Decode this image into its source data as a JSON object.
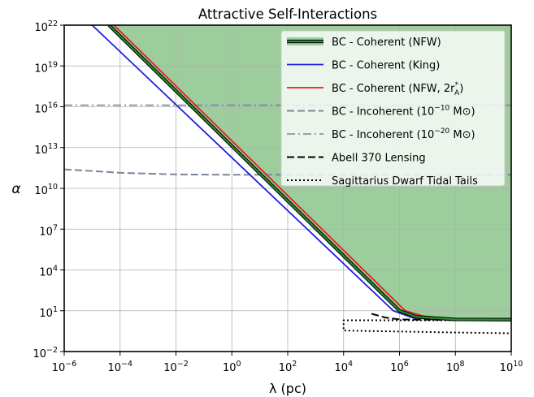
{
  "chart_data": {
    "type": "line",
    "title": "Attractive Self-Interactions",
    "xlabel": "λ (pc)",
    "ylabel": "α",
    "xscale": "log",
    "yscale": "log",
    "xlim": [
      1e-06,
      10000000000.0
    ],
    "ylim": [
      0.01,
      1e+22
    ],
    "grid": true,
    "legend_position": "top-right",
    "x_ticks": [
      {
        "value": 1e-06,
        "base": "10",
        "exp": "−6"
      },
      {
        "value": 0.0001,
        "base": "10",
        "exp": "−4"
      },
      {
        "value": 0.01,
        "base": "10",
        "exp": "−2"
      },
      {
        "value": 1.0,
        "base": "10",
        "exp": "0"
      },
      {
        "value": 100.0,
        "base": "10",
        "exp": "2"
      },
      {
        "value": 10000.0,
        "base": "10",
        "exp": "4"
      },
      {
        "value": 1000000.0,
        "base": "10",
        "exp": "6"
      },
      {
        "value": 100000000.0,
        "base": "10",
        "exp": "8"
      },
      {
        "value": 10000000000.0,
        "base": "10",
        "exp": "10"
      }
    ],
    "y_ticks": [
      {
        "value": 0.01,
        "base": "10",
        "exp": "−2"
      },
      {
        "value": 10.0,
        "base": "10",
        "exp": "1"
      },
      {
        "value": 10000.0,
        "base": "10",
        "exp": "4"
      },
      {
        "value": 10000000.0,
        "base": "10",
        "exp": "7"
      },
      {
        "value": 10000000000.0,
        "base": "10",
        "exp": "10"
      },
      {
        "value": 10000000000000.0,
        "base": "10",
        "exp": "13"
      },
      {
        "value": 1e+16,
        "base": "10",
        "exp": "16"
      },
      {
        "value": 1e+19,
        "base": "10",
        "exp": "19"
      },
      {
        "value": 1e+22,
        "base": "10",
        "exp": "22"
      }
    ],
    "excluded_region": {
      "color": "#9dcc9d",
      "bounded_by_series": "BC - Coherent (NFW)"
    },
    "series": [
      {
        "name": "BC - Coherent (NFW)",
        "color": "#2e8b2e",
        "style": "solid-thick",
        "points": [
          [
            4e-05,
            1e+22
          ],
          [
            1000000.0,
            10.0
          ],
          [
            4000000.0,
            3.5
          ],
          [
            100000000.0,
            2.3
          ],
          [
            10000000000.0,
            2.2
          ]
        ]
      },
      {
        "name": "BC - Coherent (King)",
        "color": "#1f1fe0",
        "style": "solid",
        "points": [
          [
            1e-05,
            1e+22
          ],
          [
            600000.0,
            10.0
          ],
          [
            3000000.0,
            3
          ],
          [
            100000000.0,
            2.0
          ],
          [
            10000000000.0,
            1.9
          ]
        ]
      },
      {
        "name": "BC - Coherent (NFW, 2r*_A)",
        "color": "#e81c1c",
        "style": "solid",
        "points": [
          [
            6e-05,
            1e+22
          ],
          [
            1600000.0,
            10.0
          ],
          [
            7000000.0,
            4
          ],
          [
            100000000.0,
            2.5
          ],
          [
            10000000000.0,
            2.3
          ]
        ]
      },
      {
        "name": "BC - Incoherent (10^-10 M⊙)",
        "color": "#7a8699",
        "style": "dashed",
        "points": [
          [
            1e-06,
            250000000000.0
          ],
          [
            0.0001,
            140000000000.0
          ],
          [
            0.01,
            105000000000.0
          ],
          [
            1.0,
            100000000000.0
          ],
          [
            100.0,
            100000000000.0
          ],
          [
            10000.0,
            100000000000.0
          ],
          [
            1000000.0,
            100000000000.0
          ],
          [
            100000000.0,
            100000000000.0
          ],
          [
            10000000000.0,
            100000000000.0
          ]
        ]
      },
      {
        "name": "BC - Incoherent (10^-20 M⊙)",
        "color": "#7a8699",
        "style": "dashdot",
        "points": [
          [
            1e-06,
            1.3e+16
          ],
          [
            10000000000.0,
            1.3e+16
          ]
        ]
      },
      {
        "name": "Abell 370 Lensing",
        "color": "#000000",
        "style": "dashed",
        "points": [
          [
            100000.0,
            6
          ],
          [
            300000.0,
            3.2
          ],
          [
            1000000.0,
            2.3
          ],
          [
            100000000.0,
            2.1
          ],
          [
            10000000000.0,
            2.1
          ]
        ]
      },
      {
        "name": "Sagittarius Dwarf Tidal Tails",
        "color": "#000000",
        "style": "dotted",
        "points": [
          [
            10000000000.0,
            2.0
          ],
          [
            100000000.0,
            2.0
          ],
          [
            10000.0,
            2.0
          ],
          [
            10000.0,
            1.3
          ],
          [
            10000.0,
            0.35
          ],
          [
            100000000.0,
            0.25
          ],
          [
            10000000000.0,
            0.22
          ]
        ]
      }
    ],
    "legend": [
      {
        "label": "BC - Coherent (NFW)",
        "label_main": "BC - Coherent (NFW)",
        "label_sup": "",
        "label_sub": "",
        "label_tail": ""
      },
      {
        "label": "BC - Coherent (King)",
        "label_main": "BC - Coherent (King)",
        "label_sup": "",
        "label_sub": "",
        "label_tail": ""
      },
      {
        "label": "BC - Coherent (NFW, 2r*_A)",
        "label_main": "BC - Coherent (NFW, 2r",
        "label_sup": "*",
        "label_sub": "A",
        "label_tail": ")"
      },
      {
        "label": "BC - Incoherent (10^-10 M⊙)",
        "label_main": "BC - Incoherent (10",
        "label_sup": "−10",
        "label_sub": "",
        "label_tail": " M⊙)"
      },
      {
        "label": "BC - Incoherent (10^-20 M⊙)",
        "label_main": "BC - Incoherent (10",
        "label_sup": "−20",
        "label_sub": "",
        "label_tail": " M⊙)"
      },
      {
        "label": "Abell 370 Lensing",
        "label_main": "Abell 370 Lensing",
        "label_sup": "",
        "label_sub": "",
        "label_tail": ""
      },
      {
        "label": "Sagittarius Dwarf Tidal Tails",
        "label_main": "Sagittarius Dwarf Tidal Tails",
        "label_sup": "",
        "label_sub": "",
        "label_tail": ""
      }
    ]
  }
}
